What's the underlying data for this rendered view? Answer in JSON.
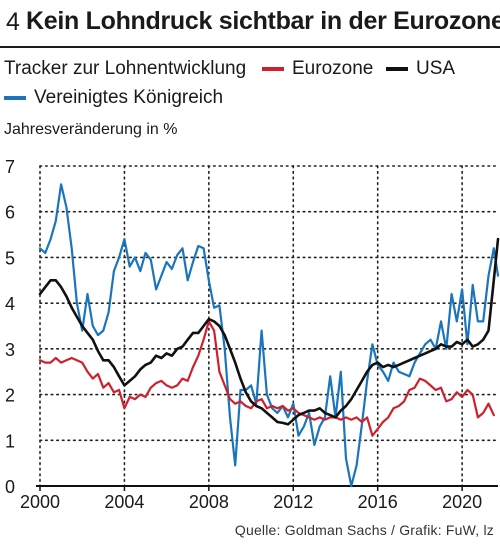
{
  "figure_number": "4",
  "title": "Kein Lohndruck sichtbar in der Eurozone",
  "subtitle": "Tracker zur Lohnentwicklung",
  "source": "Quelle: Goldman Sachs / Grafik: FuW, lz",
  "legend": [
    {
      "label": "Eurozone",
      "color": "#d0202e"
    },
    {
      "label": "USA",
      "color": "#111111"
    },
    {
      "label": "Vereinigtes Königreich",
      "color": "#1b75bc"
    }
  ],
  "chart_data": {
    "type": "line",
    "ylabel": "Jahresveränderung in %",
    "xlim": [
      2000,
      2021.7
    ],
    "ylim": [
      0,
      7
    ],
    "x_ticks": [
      2000,
      2004,
      2008,
      2012,
      2016,
      2020
    ],
    "y_ticks": [
      0,
      1,
      2,
      3,
      4,
      5,
      6,
      7
    ],
    "grid": "dotted",
    "series": [
      {
        "name": "Eurozone",
        "color": "#d0202e",
        "points": [
          [
            2000.0,
            2.75
          ],
          [
            2000.25,
            2.7
          ],
          [
            2000.5,
            2.7
          ],
          [
            2000.75,
            2.8
          ],
          [
            2001.0,
            2.7
          ],
          [
            2001.25,
            2.75
          ],
          [
            2001.5,
            2.8
          ],
          [
            2001.75,
            2.75
          ],
          [
            2002.0,
            2.7
          ],
          [
            2002.25,
            2.5
          ],
          [
            2002.5,
            2.35
          ],
          [
            2002.75,
            2.45
          ],
          [
            2003.0,
            2.15
          ],
          [
            2003.25,
            2.25
          ],
          [
            2003.5,
            2.05
          ],
          [
            2003.75,
            2.1
          ],
          [
            2004.0,
            1.7
          ],
          [
            2004.25,
            1.95
          ],
          [
            2004.5,
            1.9
          ],
          [
            2004.75,
            2.0
          ],
          [
            2005.0,
            1.95
          ],
          [
            2005.25,
            2.15
          ],
          [
            2005.5,
            2.25
          ],
          [
            2005.75,
            2.3
          ],
          [
            2006.0,
            2.2
          ],
          [
            2006.25,
            2.15
          ],
          [
            2006.5,
            2.2
          ],
          [
            2006.75,
            2.35
          ],
          [
            2007.0,
            2.3
          ],
          [
            2007.25,
            2.6
          ],
          [
            2007.5,
            2.85
          ],
          [
            2007.75,
            3.2
          ],
          [
            2008.0,
            3.6
          ],
          [
            2008.25,
            3.4
          ],
          [
            2008.5,
            2.5
          ],
          [
            2008.75,
            2.2
          ],
          [
            2009.0,
            1.9
          ],
          [
            2009.25,
            1.8
          ],
          [
            2009.5,
            1.85
          ],
          [
            2009.75,
            1.75
          ],
          [
            2010.0,
            1.7
          ],
          [
            2010.25,
            1.85
          ],
          [
            2010.5,
            1.9
          ],
          [
            2010.75,
            1.7
          ],
          [
            2011.0,
            1.75
          ],
          [
            2011.25,
            1.7
          ],
          [
            2011.5,
            1.75
          ],
          [
            2011.75,
            1.65
          ],
          [
            2012.0,
            1.7
          ],
          [
            2012.25,
            1.6
          ],
          [
            2012.5,
            1.55
          ],
          [
            2012.75,
            1.5
          ],
          [
            2013.0,
            1.45
          ],
          [
            2013.25,
            1.5
          ],
          [
            2013.5,
            1.45
          ],
          [
            2013.75,
            1.5
          ],
          [
            2014.0,
            1.5
          ],
          [
            2014.25,
            1.45
          ],
          [
            2014.5,
            1.5
          ],
          [
            2014.75,
            1.45
          ],
          [
            2015.0,
            1.5
          ],
          [
            2015.25,
            1.4
          ],
          [
            2015.5,
            1.5
          ],
          [
            2015.75,
            1.1
          ],
          [
            2016.0,
            1.25
          ],
          [
            2016.25,
            1.4
          ],
          [
            2016.5,
            1.5
          ],
          [
            2016.75,
            1.7
          ],
          [
            2017.0,
            1.75
          ],
          [
            2017.25,
            1.85
          ],
          [
            2017.5,
            2.1
          ],
          [
            2017.75,
            2.15
          ],
          [
            2018.0,
            2.35
          ],
          [
            2018.25,
            2.3
          ],
          [
            2018.5,
            2.2
          ],
          [
            2018.75,
            2.1
          ],
          [
            2019.0,
            2.15
          ],
          [
            2019.25,
            1.85
          ],
          [
            2019.5,
            1.9
          ],
          [
            2019.75,
            2.05
          ],
          [
            2020.0,
            1.95
          ],
          [
            2020.25,
            2.1
          ],
          [
            2020.5,
            2.0
          ],
          [
            2020.75,
            1.5
          ],
          [
            2021.0,
            1.6
          ],
          [
            2021.25,
            1.8
          ],
          [
            2021.5,
            1.55
          ]
        ]
      },
      {
        "name": "USA",
        "color": "#111111",
        "points": [
          [
            2000.0,
            4.2
          ],
          [
            2000.25,
            4.35
          ],
          [
            2000.5,
            4.5
          ],
          [
            2000.75,
            4.5
          ],
          [
            2001.0,
            4.35
          ],
          [
            2001.25,
            4.15
          ],
          [
            2001.5,
            3.9
          ],
          [
            2001.75,
            3.7
          ],
          [
            2002.0,
            3.5
          ],
          [
            2002.25,
            3.35
          ],
          [
            2002.5,
            3.2
          ],
          [
            2002.75,
            2.95
          ],
          [
            2003.0,
            2.75
          ],
          [
            2003.25,
            2.75
          ],
          [
            2003.5,
            2.6
          ],
          [
            2003.75,
            2.4
          ],
          [
            2004.0,
            2.2
          ],
          [
            2004.25,
            2.3
          ],
          [
            2004.5,
            2.4
          ],
          [
            2004.75,
            2.55
          ],
          [
            2005.0,
            2.65
          ],
          [
            2005.25,
            2.7
          ],
          [
            2005.5,
            2.85
          ],
          [
            2005.75,
            2.8
          ],
          [
            2006.0,
            2.9
          ],
          [
            2006.25,
            2.85
          ],
          [
            2006.5,
            3.0
          ],
          [
            2006.75,
            3.05
          ],
          [
            2007.0,
            3.2
          ],
          [
            2007.25,
            3.35
          ],
          [
            2007.5,
            3.35
          ],
          [
            2007.75,
            3.5
          ],
          [
            2008.0,
            3.65
          ],
          [
            2008.25,
            3.6
          ],
          [
            2008.5,
            3.5
          ],
          [
            2008.75,
            3.3
          ],
          [
            2009.0,
            3.0
          ],
          [
            2009.25,
            2.7
          ],
          [
            2009.5,
            2.35
          ],
          [
            2009.75,
            2.05
          ],
          [
            2010.0,
            1.85
          ],
          [
            2010.25,
            1.75
          ],
          [
            2010.5,
            1.7
          ],
          [
            2010.75,
            1.6
          ],
          [
            2011.0,
            1.5
          ],
          [
            2011.25,
            1.4
          ],
          [
            2011.5,
            1.38
          ],
          [
            2011.75,
            1.35
          ],
          [
            2012.0,
            1.45
          ],
          [
            2012.25,
            1.55
          ],
          [
            2012.5,
            1.6
          ],
          [
            2012.75,
            1.65
          ],
          [
            2013.0,
            1.65
          ],
          [
            2013.25,
            1.7
          ],
          [
            2013.5,
            1.6
          ],
          [
            2013.75,
            1.55
          ],
          [
            2014.0,
            1.5
          ],
          [
            2014.25,
            1.65
          ],
          [
            2014.5,
            1.75
          ],
          [
            2014.75,
            1.9
          ],
          [
            2015.0,
            2.1
          ],
          [
            2015.25,
            2.3
          ],
          [
            2015.5,
            2.5
          ],
          [
            2015.75,
            2.65
          ],
          [
            2016.0,
            2.7
          ],
          [
            2016.25,
            2.6
          ],
          [
            2016.5,
            2.65
          ],
          [
            2016.75,
            2.6
          ],
          [
            2017.0,
            2.65
          ],
          [
            2017.25,
            2.7
          ],
          [
            2017.5,
            2.75
          ],
          [
            2017.75,
            2.8
          ],
          [
            2018.0,
            2.85
          ],
          [
            2018.25,
            2.9
          ],
          [
            2018.5,
            2.95
          ],
          [
            2018.75,
            3.0
          ],
          [
            2019.0,
            3.1
          ],
          [
            2019.25,
            3.05
          ],
          [
            2019.5,
            3.05
          ],
          [
            2019.75,
            3.15
          ],
          [
            2020.0,
            3.1
          ],
          [
            2020.25,
            3.2
          ],
          [
            2020.5,
            3.05
          ],
          [
            2020.75,
            3.1
          ],
          [
            2021.0,
            3.2
          ],
          [
            2021.25,
            3.4
          ],
          [
            2021.5,
            4.5
          ],
          [
            2021.7,
            5.4
          ]
        ]
      },
      {
        "name": "Vereinigtes Königreich",
        "color": "#1b75bc",
        "points": [
          [
            2000.0,
            5.2
          ],
          [
            2000.25,
            5.1
          ],
          [
            2000.5,
            5.4
          ],
          [
            2000.75,
            5.8
          ],
          [
            2001.0,
            6.6
          ],
          [
            2001.25,
            6.1
          ],
          [
            2001.5,
            5.2
          ],
          [
            2001.75,
            4.0
          ],
          [
            2002.0,
            3.4
          ],
          [
            2002.25,
            4.2
          ],
          [
            2002.5,
            3.5
          ],
          [
            2002.75,
            3.3
          ],
          [
            2003.0,
            3.4
          ],
          [
            2003.25,
            3.8
          ],
          [
            2003.5,
            4.7
          ],
          [
            2003.75,
            5.0
          ],
          [
            2004.0,
            5.4
          ],
          [
            2004.25,
            4.8
          ],
          [
            2004.5,
            5.0
          ],
          [
            2004.75,
            4.7
          ],
          [
            2005.0,
            5.1
          ],
          [
            2005.25,
            4.95
          ],
          [
            2005.5,
            4.3
          ],
          [
            2005.75,
            4.6
          ],
          [
            2006.0,
            4.9
          ],
          [
            2006.25,
            4.75
          ],
          [
            2006.5,
            5.05
          ],
          [
            2006.75,
            5.2
          ],
          [
            2007.0,
            4.5
          ],
          [
            2007.25,
            4.9
          ],
          [
            2007.5,
            5.25
          ],
          [
            2007.75,
            5.2
          ],
          [
            2008.0,
            4.5
          ],
          [
            2008.25,
            3.9
          ],
          [
            2008.5,
            3.95
          ],
          [
            2008.75,
            3.0
          ],
          [
            2009.0,
            1.5
          ],
          [
            2009.25,
            0.45
          ],
          [
            2009.5,
            2.1
          ],
          [
            2009.75,
            2.1
          ],
          [
            2010.0,
            2.2
          ],
          [
            2010.25,
            1.8
          ],
          [
            2010.5,
            3.4
          ],
          [
            2010.75,
            2.0
          ],
          [
            2011.0,
            1.7
          ],
          [
            2011.25,
            1.6
          ],
          [
            2011.5,
            1.75
          ],
          [
            2011.75,
            1.5
          ],
          [
            2012.0,
            1.8
          ],
          [
            2012.25,
            1.1
          ],
          [
            2012.5,
            1.3
          ],
          [
            2012.75,
            1.6
          ],
          [
            2013.0,
            0.9
          ],
          [
            2013.25,
            1.3
          ],
          [
            2013.5,
            1.5
          ],
          [
            2013.75,
            2.4
          ],
          [
            2014.0,
            1.5
          ],
          [
            2014.25,
            2.5
          ],
          [
            2014.5,
            0.6
          ],
          [
            2014.75,
            0.0
          ],
          [
            2015.0,
            0.45
          ],
          [
            2015.25,
            1.35
          ],
          [
            2015.5,
            2.3
          ],
          [
            2015.75,
            3.1
          ],
          [
            2016.0,
            2.65
          ],
          [
            2016.25,
            2.5
          ],
          [
            2016.5,
            2.3
          ],
          [
            2016.75,
            2.7
          ],
          [
            2017.0,
            2.5
          ],
          [
            2017.25,
            2.45
          ],
          [
            2017.5,
            2.4
          ],
          [
            2017.75,
            2.7
          ],
          [
            2018.0,
            2.9
          ],
          [
            2018.25,
            3.1
          ],
          [
            2018.5,
            3.2
          ],
          [
            2018.75,
            3.0
          ],
          [
            2019.0,
            3.6
          ],
          [
            2019.25,
            3.0
          ],
          [
            2019.5,
            4.2
          ],
          [
            2019.75,
            3.6
          ],
          [
            2020.0,
            4.3
          ],
          [
            2020.25,
            3.1
          ],
          [
            2020.5,
            4.4
          ],
          [
            2020.75,
            3.6
          ],
          [
            2021.0,
            3.6
          ],
          [
            2021.25,
            4.6
          ],
          [
            2021.5,
            5.2
          ],
          [
            2021.7,
            4.6
          ]
        ]
      }
    ]
  }
}
